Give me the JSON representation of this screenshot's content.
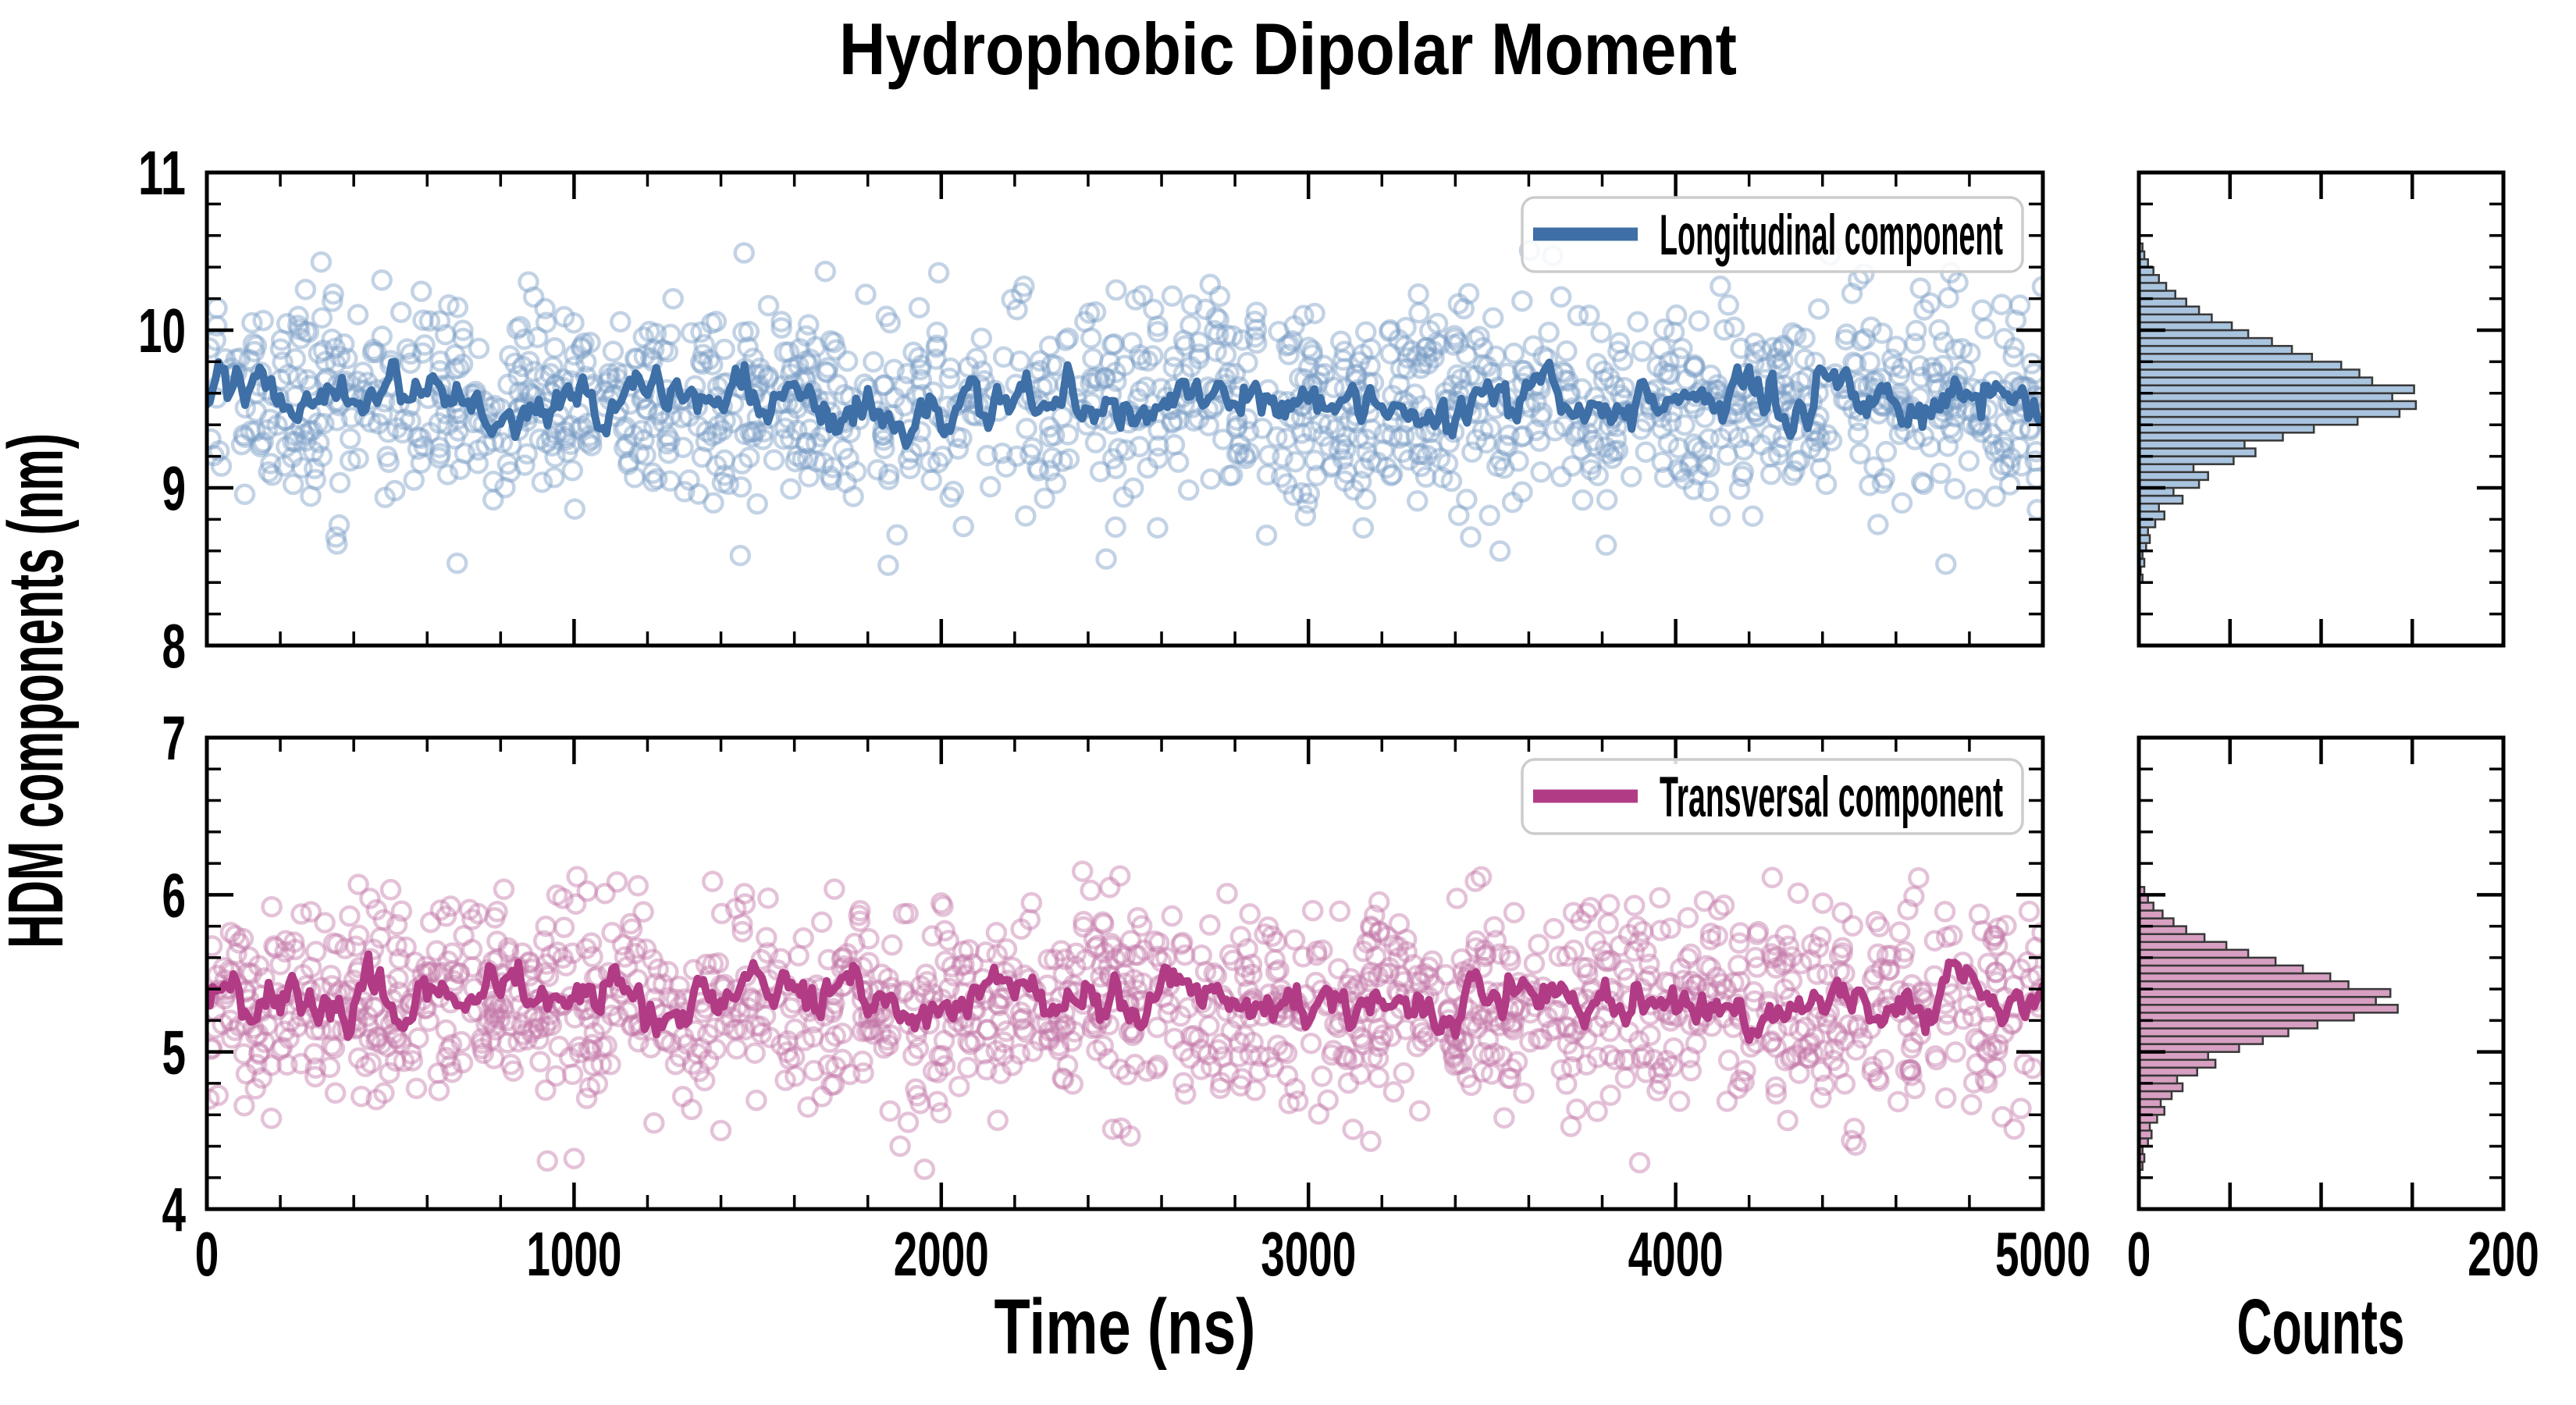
{
  "title": "Hydrophobic Dipolar Moment",
  "y_axis_label": "HDM components (nm)",
  "x_axis": {
    "label": "Time (ns)",
    "tick_labels": [
      "0",
      "1000",
      "2000",
      "3000",
      "4000",
      "5000"
    ],
    "range": [
      0,
      5000
    ],
    "minor_step": 200
  },
  "counts_axis": {
    "label": "Counts",
    "tick_labels": [
      "0",
      "200"
    ],
    "unlabeled_ticks": [
      50,
      100,
      150
    ],
    "range": [
      0,
      200
    ]
  },
  "top_panel": {
    "y_tick_labels": [
      "8",
      "9",
      "10",
      "11"
    ],
    "y_range": [
      8,
      11
    ],
    "y_minor_step": 0.2,
    "legend_label": "Longitudinal component"
  },
  "bottom_panel": {
    "y_tick_labels": [
      "4",
      "5",
      "6",
      "7"
    ],
    "y_range": [
      4,
      7
    ],
    "y_minor_step": 0.2,
    "legend_label": "Transversal component"
  },
  "colors": {
    "longitudinal_line": "#3e6fa6",
    "longitudinal_marker": "#7b9dc6",
    "longitudinal_hist_fill": "#a9c4de",
    "transversal_line": "#b13c85",
    "transversal_marker": "#c477a8",
    "transversal_hist_fill": "#d79fc1",
    "hist_edge": "#383838",
    "spine": "#000000",
    "legend_border": "#cccccc",
    "text": "#000000"
  },
  "chart_data": [
    {
      "type": "scatter+line",
      "name": "Longitudinal component",
      "x_range_ns": [
        0,
        5000
      ],
      "y_range_nm": [
        8,
        11
      ],
      "mean_nm": 9.55,
      "sd_nm": 0.32,
      "observed_range_nm": [
        8.45,
        10.55
      ],
      "line_description": "thick running-average line fluctuating ~±0.15 nm about 9.55 nm",
      "histogram": {
        "orientation": "horizontal",
        "counts_range": [
          0,
          200
        ],
        "bin_start_nm": 8.4,
        "bin_width_nm": 0.05,
        "counts": [
          2,
          1,
          3,
          2,
          4,
          6,
          5,
          9,
          14,
          11,
          24,
          19,
          33,
          38,
          30,
          52,
          64,
          58,
          79,
          96,
          120,
          143,
          152,
          139,
          151,
          128,
          121,
          111,
          95,
          84,
          73,
          60,
          51,
          40,
          33,
          26,
          20,
          15,
          11,
          8,
          5,
          3,
          2
        ]
      }
    },
    {
      "type": "scatter+line",
      "name": "Transversal component",
      "x_range_ns": [
        0,
        5000
      ],
      "y_range_nm": [
        4,
        7
      ],
      "mean_nm": 5.33,
      "sd_nm": 0.33,
      "observed_range_nm": [
        4.22,
        6.15
      ],
      "line_description": "thick running-average line fluctuating ~±0.15 nm about 5.33 nm",
      "histogram": {
        "orientation": "horizontal",
        "counts_range": [
          0,
          200
        ],
        "bin_start_nm": 4.25,
        "bin_width_nm": 0.05,
        "counts": [
          2,
          3,
          2,
          5,
          7,
          6,
          10,
          14,
          12,
          18,
          24,
          21,
          32,
          42,
          38,
          55,
          68,
          82,
          98,
          118,
          142,
          130,
          138,
          115,
          105,
          90,
          75,
          60,
          48,
          36,
          26,
          19,
          13,
          8,
          5,
          3
        ]
      }
    }
  ]
}
